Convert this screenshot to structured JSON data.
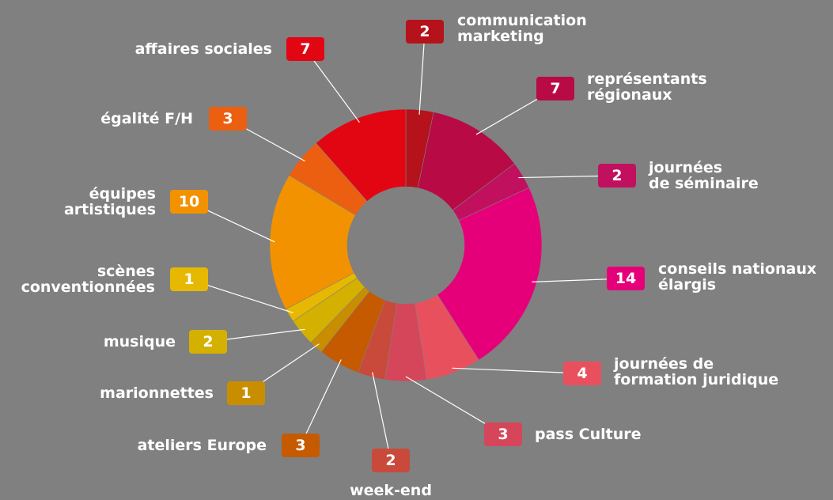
{
  "chart_data": {
    "type": "donut",
    "categories": [
      "communication\nmarketing",
      "représentants\nrégionaux",
      "journées\nde séminaire",
      "conseils nationaux\nélargis",
      "journées de\nformation juridique",
      "pass Culture",
      "week-end",
      "ateliers Europe",
      "marionnettes",
      "musique",
      "scènes\nconventionnées",
      "équipes\nartistiques",
      "égalité F/H",
      "affaires sociales"
    ],
    "values": [
      2,
      7,
      2,
      14,
      4,
      3,
      2,
      3,
      1,
      2,
      1,
      10,
      3,
      7
    ],
    "colors": [
      "#b5121b",
      "#b80a45",
      "#c0105e",
      "#e5007a",
      "#e9505e",
      "#d6465a",
      "#c94a3a",
      "#c55a00",
      "#c98e00",
      "#d4b000",
      "#e6b800",
      "#f39200",
      "#ec5f10",
      "#e20613"
    ]
  }
}
